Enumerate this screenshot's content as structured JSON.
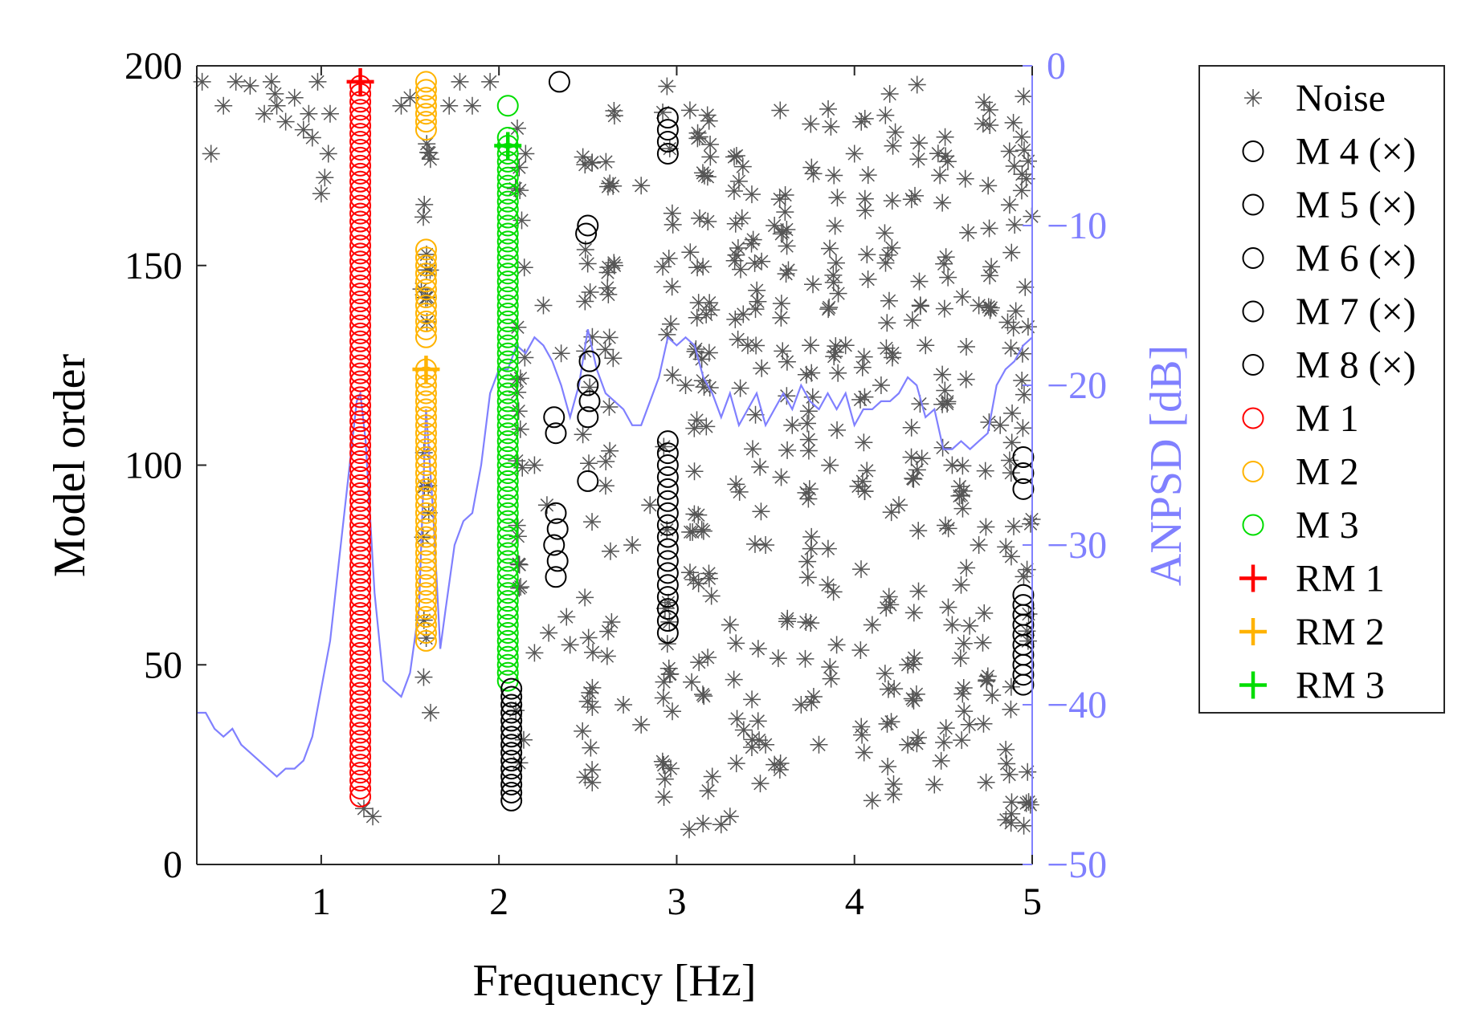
{
  "chart_data": {
    "type": "scatter",
    "title": "",
    "xlabel": "Frequency [Hz]",
    "ylabel": "Model order",
    "y2label": "ANPSD [dB]",
    "xlim": [
      0.3,
      5.0
    ],
    "ylim": [
      0,
      200
    ],
    "y2lim": [
      -50,
      0
    ],
    "xticks": [
      "1",
      "2",
      "3",
      "4",
      "5"
    ],
    "yticks": [
      "0",
      "50",
      "100",
      "150",
      "200"
    ],
    "y2ticks": [
      "0",
      "−10",
      "−20",
      "−30",
      "−40",
      "−50"
    ],
    "legend_position": "outside-right",
    "colors": {
      "noise": "#555555",
      "m1": "#ff0000",
      "m2": "#ffb300",
      "m3": "#00dd00",
      "black_modes": "#000000",
      "anpsd": "#8080ff"
    },
    "legend": [
      {
        "label": "Noise",
        "marker": "star",
        "color": "#555555"
      },
      {
        "label": "M 4 (×)",
        "marker": "circle",
        "color": "#000000"
      },
      {
        "label": "M 5 (×)",
        "marker": "circle",
        "color": "#000000"
      },
      {
        "label": "M 6 (×)",
        "marker": "circle",
        "color": "#000000"
      },
      {
        "label": "M 7 (×)",
        "marker": "circle",
        "color": "#000000"
      },
      {
        "label": "M 8 (×)",
        "marker": "circle",
        "color": "#000000"
      },
      {
        "label": "M 1",
        "marker": "circle",
        "color": "#ff0000"
      },
      {
        "label": "M 2",
        "marker": "circle",
        "color": "#ffb300"
      },
      {
        "label": "M 3",
        "marker": "circle",
        "color": "#00dd00"
      },
      {
        "label": "RM 1",
        "marker": "plus",
        "color": "#ff0000"
      },
      {
        "label": "RM 2",
        "marker": "plus",
        "color": "#ffb300"
      },
      {
        "label": "RM 3",
        "marker": "plus",
        "color": "#00dd00"
      }
    ],
    "series": [
      {
        "name": "M 1",
        "marker": "circle",
        "color": "#ff0000",
        "freq": 1.22,
        "orders": [
          [
            17,
            196,
            2
          ]
        ]
      },
      {
        "name": "M 2",
        "marker": "circle",
        "color": "#ffb300",
        "freq": 1.59,
        "orders": [
          [
            56,
            124,
            2
          ],
          [
            132,
            154,
            2
          ],
          [
            184,
            196,
            2
          ]
        ]
      },
      {
        "name": "M 3",
        "marker": "circle",
        "color": "#00dd00",
        "freq": 2.05,
        "orders": [
          [
            46,
            182,
            2
          ],
          [
            190,
            190,
            2
          ]
        ]
      },
      {
        "name": "M 4 (×)",
        "marker": "circle",
        "color": "#000000",
        "freq": 2.07,
        "orders": [
          [
            16,
            44,
            2
          ]
        ]
      },
      {
        "name": "M 5 (×)",
        "marker": "circle",
        "color": "#000000",
        "freq": 2.33,
        "points": [
          [
            2.32,
            72
          ],
          [
            2.33,
            76
          ],
          [
            2.31,
            80
          ],
          [
            2.33,
            84
          ],
          [
            2.32,
            88
          ],
          [
            2.32,
            108
          ],
          [
            2.31,
            112
          ],
          [
            2.34,
            196
          ]
        ]
      },
      {
        "name": "M 6 (×)",
        "marker": "circle",
        "color": "#000000",
        "freq": 2.5,
        "points": [
          [
            2.5,
            96
          ],
          [
            2.5,
            112
          ],
          [
            2.51,
            116
          ],
          [
            2.5,
            120
          ],
          [
            2.51,
            126
          ],
          [
            2.49,
            158
          ],
          [
            2.5,
            160
          ]
        ]
      },
      {
        "name": "M 7 (×)",
        "marker": "circle",
        "color": "#000000",
        "freq": 2.95,
        "orders": [
          [
            58,
            106,
            3
          ],
          [
            178,
            188,
            3
          ]
        ]
      },
      {
        "name": "M 8 (×)",
        "marker": "circle",
        "color": "#000000",
        "freq": 4.95,
        "orders": [
          [
            45,
            68,
            2.5
          ],
          [
            94,
            102,
            4
          ]
        ]
      },
      {
        "name": "RM 1",
        "marker": "plus",
        "color": "#ff0000",
        "points": [
          [
            1.22,
            196
          ]
        ]
      },
      {
        "name": "RM 2",
        "marker": "plus",
        "color": "#ffb300",
        "points": [
          [
            1.59,
            124
          ]
        ]
      },
      {
        "name": "RM 3",
        "marker": "plus",
        "color": "#00dd00",
        "points": [
          [
            2.05,
            180
          ]
        ]
      },
      {
        "name": "Noise",
        "marker": "star",
        "color": "#555555",
        "columns": [
          [
            1.59,
            38,
            190,
            22
          ],
          [
            2.12,
            12,
            185,
            24
          ],
          [
            2.5,
            20,
            196,
            26
          ],
          [
            2.62,
            18,
            190,
            22
          ],
          [
            2.95,
            10,
            196,
            28
          ],
          [
            3.1,
            8,
            190,
            24
          ],
          [
            3.17,
            10,
            196,
            28
          ],
          [
            3.35,
            12,
            185,
            22
          ],
          [
            3.45,
            20,
            190,
            22
          ],
          [
            3.6,
            18,
            190,
            22
          ],
          [
            3.75,
            25,
            196,
            24
          ],
          [
            3.88,
            30,
            190,
            22
          ],
          [
            4.05,
            20,
            190,
            22
          ],
          [
            4.2,
            15,
            196,
            26
          ],
          [
            4.35,
            20,
            196,
            26
          ],
          [
            4.5,
            25,
            190,
            22
          ],
          [
            4.62,
            30,
            190,
            20
          ],
          [
            4.75,
            20,
            196,
            22
          ],
          [
            4.88,
            10,
            196,
            26
          ],
          [
            4.97,
            8,
            196,
            26
          ]
        ],
        "points": [
          [
            0.33,
            196
          ],
          [
            0.45,
            190
          ],
          [
            0.52,
            196
          ],
          [
            0.6,
            195
          ],
          [
            0.68,
            188
          ],
          [
            0.72,
            196
          ],
          [
            0.75,
            190
          ],
          [
            0.8,
            186
          ],
          [
            0.85,
            192
          ],
          [
            0.9,
            184
          ],
          [
            0.93,
            188
          ],
          [
            0.98,
            196
          ],
          [
            1.0,
            168
          ],
          [
            1.02,
            172
          ],
          [
            1.04,
            178
          ],
          [
            0.38,
            178
          ],
          [
            0.74,
            193
          ],
          [
            0.95,
            182
          ],
          [
            1.05,
            188
          ],
          [
            1.24,
            14
          ],
          [
            1.29,
            12
          ],
          [
            1.45,
            190
          ],
          [
            1.5,
            192
          ],
          [
            1.72,
            190
          ],
          [
            1.78,
            196
          ],
          [
            1.85,
            190
          ],
          [
            1.95,
            196
          ],
          [
            2.15,
            178
          ],
          [
            2.2,
            53
          ],
          [
            2.28,
            58
          ],
          [
            2.38,
            62
          ],
          [
            2.4,
            55
          ],
          [
            2.7,
            40
          ],
          [
            2.8,
            35
          ],
          [
            3.2,
            22
          ],
          [
            3.3,
            12
          ],
          [
            3.25,
            10
          ],
          [
            3.5,
            30
          ],
          [
            3.55,
            25
          ],
          [
            3.7,
            40
          ],
          [
            3.8,
            30
          ],
          [
            3.9,
            55
          ],
          [
            4.1,
            16
          ],
          [
            4.3,
            30
          ],
          [
            4.45,
            20
          ],
          [
            4.55,
            60
          ],
          [
            2.25,
            140
          ],
          [
            2.35,
            128
          ],
          [
            2.65,
            150
          ],
          [
            2.8,
            170
          ],
          [
            3.05,
            120
          ],
          [
            3.4,
            130
          ],
          [
            3.55,
            160
          ],
          [
            3.65,
            110
          ],
          [
            3.95,
            130
          ],
          [
            4.0,
            178
          ],
          [
            4.15,
            120
          ],
          [
            4.25,
            90
          ],
          [
            4.4,
            130
          ],
          [
            4.55,
            100
          ],
          [
            4.7,
            140
          ],
          [
            4.82,
            110
          ],
          [
            2.75,
            80
          ],
          [
            2.85,
            90
          ],
          [
            3.3,
            60
          ],
          [
            3.5,
            80
          ],
          [
            3.85,
            70
          ],
          [
            4.1,
            60
          ],
          [
            4.3,
            50
          ],
          [
            4.6,
            70
          ],
          [
            4.7,
            80
          ],
          [
            2.2,
            100
          ],
          [
            2.27,
            90
          ]
        ]
      }
    ],
    "anpsd": {
      "x": [
        0.3,
        0.35,
        0.4,
        0.45,
        0.5,
        0.55,
        0.6,
        0.65,
        0.7,
        0.75,
        0.8,
        0.85,
        0.9,
        0.95,
        1.0,
        1.05,
        1.1,
        1.15,
        1.2,
        1.22,
        1.25,
        1.3,
        1.35,
        1.4,
        1.45,
        1.5,
        1.55,
        1.59,
        1.63,
        1.67,
        1.7,
        1.75,
        1.8,
        1.85,
        1.9,
        1.95,
        2.0,
        2.05,
        2.1,
        2.15,
        2.2,
        2.25,
        2.3,
        2.35,
        2.4,
        2.45,
        2.5,
        2.55,
        2.6,
        2.65,
        2.7,
        2.75,
        2.8,
        2.85,
        2.9,
        2.95,
        3.0,
        3.05,
        3.1,
        3.15,
        3.2,
        3.25,
        3.3,
        3.35,
        3.4,
        3.45,
        3.5,
        3.55,
        3.6,
        3.65,
        3.7,
        3.75,
        3.8,
        3.85,
        3.9,
        3.95,
        4.0,
        4.05,
        4.1,
        4.15,
        4.2,
        4.25,
        4.3,
        4.35,
        4.4,
        4.45,
        4.5,
        4.55,
        4.6,
        4.65,
        4.7,
        4.75,
        4.8,
        4.85,
        4.9,
        4.95,
        5.0
      ],
      "y": [
        -40.5,
        -40.5,
        -41.5,
        -42.0,
        -41.5,
        -42.5,
        -43.0,
        -43.5,
        -44.0,
        -44.5,
        -44.0,
        -44.0,
        -43.5,
        -42.0,
        -39.0,
        -36.0,
        -31.0,
        -26.0,
        -21.0,
        -20.5,
        -23.5,
        -33.0,
        -38.5,
        -39.0,
        -39.5,
        -38.0,
        -34.0,
        -21.5,
        -28.0,
        -36.5,
        -34.0,
        -30.0,
        -28.5,
        -28.0,
        -25.0,
        -20.5,
        -19.0,
        -19.0,
        -17.5,
        -18.0,
        -17.0,
        -17.5,
        -18.5,
        -20.0,
        -22.0,
        -20.0,
        -16.5,
        -19.0,
        -20.5,
        -21.0,
        -21.5,
        -22.5,
        -22.5,
        -21.0,
        -19.5,
        -17.0,
        -17.5,
        -17.0,
        -17.5,
        -19.5,
        -20.5,
        -22.0,
        -20.5,
        -22.5,
        -21.5,
        -20.5,
        -22.5,
        -21.5,
        -20.5,
        -21.5,
        -20.0,
        -21.0,
        -21.5,
        -20.5,
        -21.5,
        -20.5,
        -22.5,
        -21.5,
        -21.5,
        -21.0,
        -21.0,
        -20.5,
        -19.5,
        -20.0,
        -22.0,
        -21.5,
        -24.0,
        -24.0,
        -23.5,
        -24.0,
        -23.5,
        -23.0,
        -20.0,
        -19.0,
        -18.5,
        -17.5,
        -17.0
      ]
    }
  }
}
